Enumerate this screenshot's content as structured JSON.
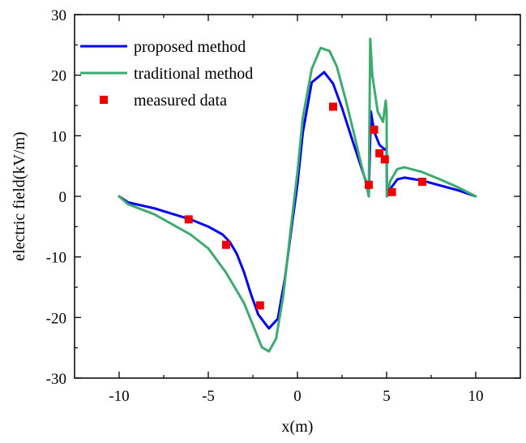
{
  "chart_data": {
    "type": "line",
    "title": "",
    "xlabel": "x(m)",
    "ylabel": "electric field(kV/m)",
    "xlim": [
      -12.5,
      12.5
    ],
    "ylim": [
      -30,
      30
    ],
    "xticks": [
      -10,
      -5,
      0,
      5,
      10
    ],
    "xtick_labels": [
      "-10",
      "-5",
      "0",
      "5",
      "10"
    ],
    "yticks": [
      -30,
      -20,
      -10,
      0,
      10,
      20,
      30
    ],
    "ytick_labels": [
      "-30",
      "-20",
      "-10",
      "0",
      "10",
      "20",
      "30"
    ],
    "grid": false,
    "legend_position": "top-left",
    "series": [
      {
        "name": "proposed method",
        "kind": "line",
        "color": "#0000ee",
        "points": [
          [
            -10,
            0
          ],
          [
            -9.5,
            -1
          ],
          [
            -8,
            -2
          ],
          [
            -6,
            -3.8
          ],
          [
            -5,
            -5
          ],
          [
            -4.2,
            -6.3
          ],
          [
            -3.8,
            -7.5
          ],
          [
            -3.4,
            -9.5
          ],
          [
            -3,
            -12.5
          ],
          [
            -2.6,
            -16.2
          ],
          [
            -2.2,
            -19.5
          ],
          [
            -1.6,
            -21.8
          ],
          [
            -1.1,
            -20.2
          ],
          [
            -0.7,
            -13.5
          ],
          [
            -0.3,
            -4.5
          ],
          [
            0,
            2
          ],
          [
            0.3,
            10.5
          ],
          [
            0.8,
            18.8
          ],
          [
            1.5,
            20.5
          ],
          [
            2,
            18.6
          ],
          [
            2.5,
            14.6
          ],
          [
            3,
            10
          ],
          [
            3.5,
            5.5
          ],
          [
            3.85,
            2.4
          ],
          [
            4.0,
            0
          ],
          [
            4.12,
            14
          ],
          [
            4.3,
            10.7
          ],
          [
            4.6,
            8.5
          ],
          [
            4.9,
            7.7
          ],
          [
            5.0,
            8
          ],
          [
            5.02,
            0
          ],
          [
            5.2,
            1.2
          ],
          [
            5.6,
            2.8
          ],
          [
            6,
            3.1
          ],
          [
            7,
            2.6
          ],
          [
            8,
            1.8
          ],
          [
            9,
            1
          ],
          [
            10,
            0
          ]
        ]
      },
      {
        "name": "traditional method",
        "kind": "line",
        "color": "#3daa6e",
        "points": [
          [
            -10,
            0
          ],
          [
            -9.5,
            -1.3
          ],
          [
            -8,
            -3
          ],
          [
            -6,
            -6.3
          ],
          [
            -5,
            -8.6
          ],
          [
            -4,
            -12.6
          ],
          [
            -3,
            -17.6
          ],
          [
            -2.5,
            -21.2
          ],
          [
            -2,
            -24.9
          ],
          [
            -1.6,
            -25.6
          ],
          [
            -1.2,
            -23.5
          ],
          [
            -0.8,
            -16.5
          ],
          [
            -0.4,
            -6
          ],
          [
            0,
            4
          ],
          [
            0.3,
            13
          ],
          [
            0.8,
            21
          ],
          [
            1.3,
            24.5
          ],
          [
            1.8,
            24
          ],
          [
            2.2,
            21.5
          ],
          [
            2.7,
            16
          ],
          [
            3.2,
            10
          ],
          [
            3.6,
            5
          ],
          [
            3.9,
            1.5
          ],
          [
            4.0,
            0
          ],
          [
            4.08,
            26
          ],
          [
            4.2,
            20
          ],
          [
            4.5,
            14
          ],
          [
            4.8,
            12.3
          ],
          [
            4.95,
            15.8
          ],
          [
            5.0,
            14
          ],
          [
            5.02,
            0
          ],
          [
            5.2,
            2.5
          ],
          [
            5.6,
            4.5
          ],
          [
            6,
            4.8
          ],
          [
            7,
            4
          ],
          [
            8,
            2.8
          ],
          [
            9,
            1.5
          ],
          [
            10,
            0
          ]
        ]
      },
      {
        "name": "measured data",
        "kind": "scatter",
        "color": "#ee0000",
        "points": [
          [
            -6.1,
            -3.8
          ],
          [
            -4,
            -8
          ],
          [
            -2.1,
            -18
          ],
          [
            2,
            14.8
          ],
          [
            4,
            1.9
          ],
          [
            4.3,
            11
          ],
          [
            4.6,
            7.1
          ],
          [
            4.9,
            6.1
          ],
          [
            5.3,
            0.7
          ],
          [
            7,
            2.4
          ]
        ]
      }
    ]
  }
}
